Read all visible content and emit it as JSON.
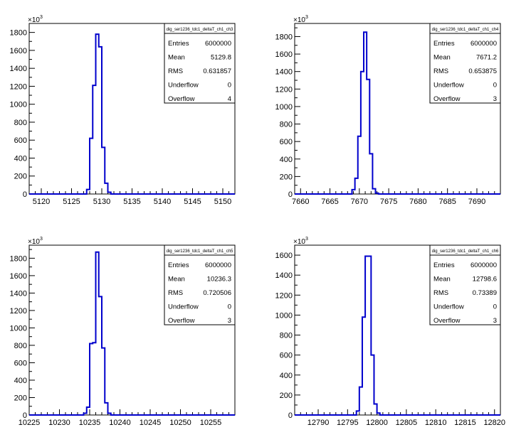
{
  "panels": [
    {
      "title": "dig_ser1236_tdc1_deltaT_ch1_ch3",
      "y_exponent": "3",
      "stats": [
        {
          "label": "Entries",
          "value": "6000000"
        },
        {
          "label": "Mean",
          "value": "5129.8"
        },
        {
          "label": "RMS",
          "value": "0.631857"
        },
        {
          "label": "Underflow",
          "value": "0"
        },
        {
          "label": "Overflow",
          "value": "4"
        }
      ]
    },
    {
      "title": "dig_ser1236_tdc1_deltaT_ch1_ch4",
      "y_exponent": "3",
      "stats": [
        {
          "label": "Entries",
          "value": "6000000"
        },
        {
          "label": "Mean",
          "value": "7671.2"
        },
        {
          "label": "RMS",
          "value": "0.653875"
        },
        {
          "label": "Underflow",
          "value": "0"
        },
        {
          "label": "Overflow",
          "value": "3"
        }
      ]
    },
    {
      "title": "dig_ser1236_tdc1_deltaT_ch1_ch5",
      "y_exponent": "3",
      "stats": [
        {
          "label": "Entries",
          "value": "6000000"
        },
        {
          "label": "Mean",
          "value": "10236.3"
        },
        {
          "label": "RMS",
          "value": "0.720506"
        },
        {
          "label": "Underflow",
          "value": "0"
        },
        {
          "label": "Overflow",
          "value": "3"
        }
      ]
    },
    {
      "title": "dig_ser1236_tdc1_deltaT_ch1_ch6",
      "y_exponent": "3",
      "stats": [
        {
          "label": "Entries",
          "value": "6000000"
        },
        {
          "label": "Mean",
          "value": "12798.6"
        },
        {
          "label": "RMS",
          "value": "0.73389"
        },
        {
          "label": "Underflow",
          "value": "0"
        },
        {
          "label": "Overflow",
          "value": "3"
        }
      ]
    }
  ],
  "chart_data": [
    {
      "type": "histogram",
      "title": "dig_ser1236_tdc1_deltaT_ch1_ch3",
      "line_color": "#0000cc",
      "xlim": [
        5118,
        5152
      ],
      "ylim": [
        0,
        1900
      ],
      "y_scale_label": "×10^3",
      "x_ticks": [
        5120,
        5125,
        5130,
        5135,
        5140,
        5145,
        5150
      ],
      "y_ticks": [
        0,
        200,
        400,
        600,
        800,
        1000,
        1200,
        1400,
        1600,
        1800
      ],
      "bins": [
        {
          "x0": 5127.5,
          "x1": 5128.0,
          "y": 50
        },
        {
          "x0": 5128.0,
          "x1": 5128.5,
          "y": 620
        },
        {
          "x0": 5128.5,
          "x1": 5129.0,
          "y": 1210
        },
        {
          "x0": 5129.0,
          "x1": 5129.5,
          "y": 1780
        },
        {
          "x0": 5129.5,
          "x1": 5130.0,
          "y": 1640
        },
        {
          "x0": 5130.0,
          "x1": 5130.5,
          "y": 520
        },
        {
          "x0": 5130.5,
          "x1": 5131.0,
          "y": 120
        },
        {
          "x0": 5131.0,
          "x1": 5131.5,
          "y": 20
        }
      ]
    },
    {
      "type": "histogram",
      "title": "dig_ser1236_tdc1_deltaT_ch1_ch4",
      "line_color": "#0000cc",
      "xlim": [
        7659,
        7694
      ],
      "ylim": [
        0,
        1950
      ],
      "y_scale_label": "×10^3",
      "x_ticks": [
        7660,
        7665,
        7670,
        7675,
        7680,
        7685,
        7690
      ],
      "y_ticks": [
        0,
        200,
        400,
        600,
        800,
        1000,
        1200,
        1400,
        1600,
        1800
      ],
      "bins": [
        {
          "x0": 7668.75,
          "x1": 7669.25,
          "y": 50
        },
        {
          "x0": 7669.25,
          "x1": 7669.75,
          "y": 180
        },
        {
          "x0": 7669.75,
          "x1": 7670.25,
          "y": 660
        },
        {
          "x0": 7670.25,
          "x1": 7670.75,
          "y": 1400
        },
        {
          "x0": 7670.75,
          "x1": 7671.25,
          "y": 1850
        },
        {
          "x0": 7671.25,
          "x1": 7671.75,
          "y": 1310
        },
        {
          "x0": 7671.75,
          "x1": 7672.25,
          "y": 460
        },
        {
          "x0": 7672.25,
          "x1": 7672.75,
          "y": 60
        },
        {
          "x0": 7672.75,
          "x1": 7673.25,
          "y": 10
        }
      ]
    },
    {
      "type": "histogram",
      "title": "dig_ser1236_tdc1_deltaT_ch1_ch5",
      "line_color": "#0000cc",
      "xlim": [
        10225,
        10259
      ],
      "ylim": [
        0,
        1950
      ],
      "y_scale_label": "×10^3",
      "x_ticks": [
        10225,
        10230,
        10235,
        10240,
        10245,
        10250,
        10255
      ],
      "y_ticks": [
        0,
        200,
        400,
        600,
        800,
        1000,
        1200,
        1400,
        1600,
        1800
      ],
      "bins": [
        {
          "x0": 10234.0,
          "x1": 10234.5,
          "y": 20
        },
        {
          "x0": 10234.5,
          "x1": 10235.0,
          "y": 90
        },
        {
          "x0": 10235.0,
          "x1": 10235.5,
          "y": 820
        },
        {
          "x0": 10235.5,
          "x1": 10236.0,
          "y": 830
        },
        {
          "x0": 10236.0,
          "x1": 10236.5,
          "y": 1870
        },
        {
          "x0": 10236.5,
          "x1": 10237.0,
          "y": 1360
        },
        {
          "x0": 10237.0,
          "x1": 10237.5,
          "y": 770
        },
        {
          "x0": 10237.5,
          "x1": 10238.0,
          "y": 140
        },
        {
          "x0": 10238.0,
          "x1": 10238.5,
          "y": 20
        }
      ]
    },
    {
      "type": "histogram",
      "title": "dig_ser1236_tdc1_deltaT_ch1_ch6",
      "line_color": "#0000cc",
      "xlim": [
        12786,
        12821
      ],
      "ylim": [
        0,
        1700
      ],
      "y_scale_label": "×10^3",
      "x_ticks": [
        12790,
        12795,
        12800,
        12805,
        12810,
        12815,
        12820
      ],
      "y_ticks": [
        0,
        200,
        400,
        600,
        800,
        1000,
        1200,
        1400,
        1600
      ],
      "bins": [
        {
          "x0": 12796.5,
          "x1": 12797.0,
          "y": 40
        },
        {
          "x0": 12797.0,
          "x1": 12797.5,
          "y": 280
        },
        {
          "x0": 12797.5,
          "x1": 12798.0,
          "y": 980
        },
        {
          "x0": 12798.0,
          "x1": 12798.5,
          "y": 1590
        },
        {
          "x0": 12798.5,
          "x1": 12799.0,
          "y": 1590
        },
        {
          "x0": 12799.0,
          "x1": 12799.5,
          "y": 600
        },
        {
          "x0": 12799.5,
          "x1": 12800.0,
          "y": 110
        },
        {
          "x0": 12800.0,
          "x1": 12800.5,
          "y": 20
        }
      ]
    }
  ]
}
